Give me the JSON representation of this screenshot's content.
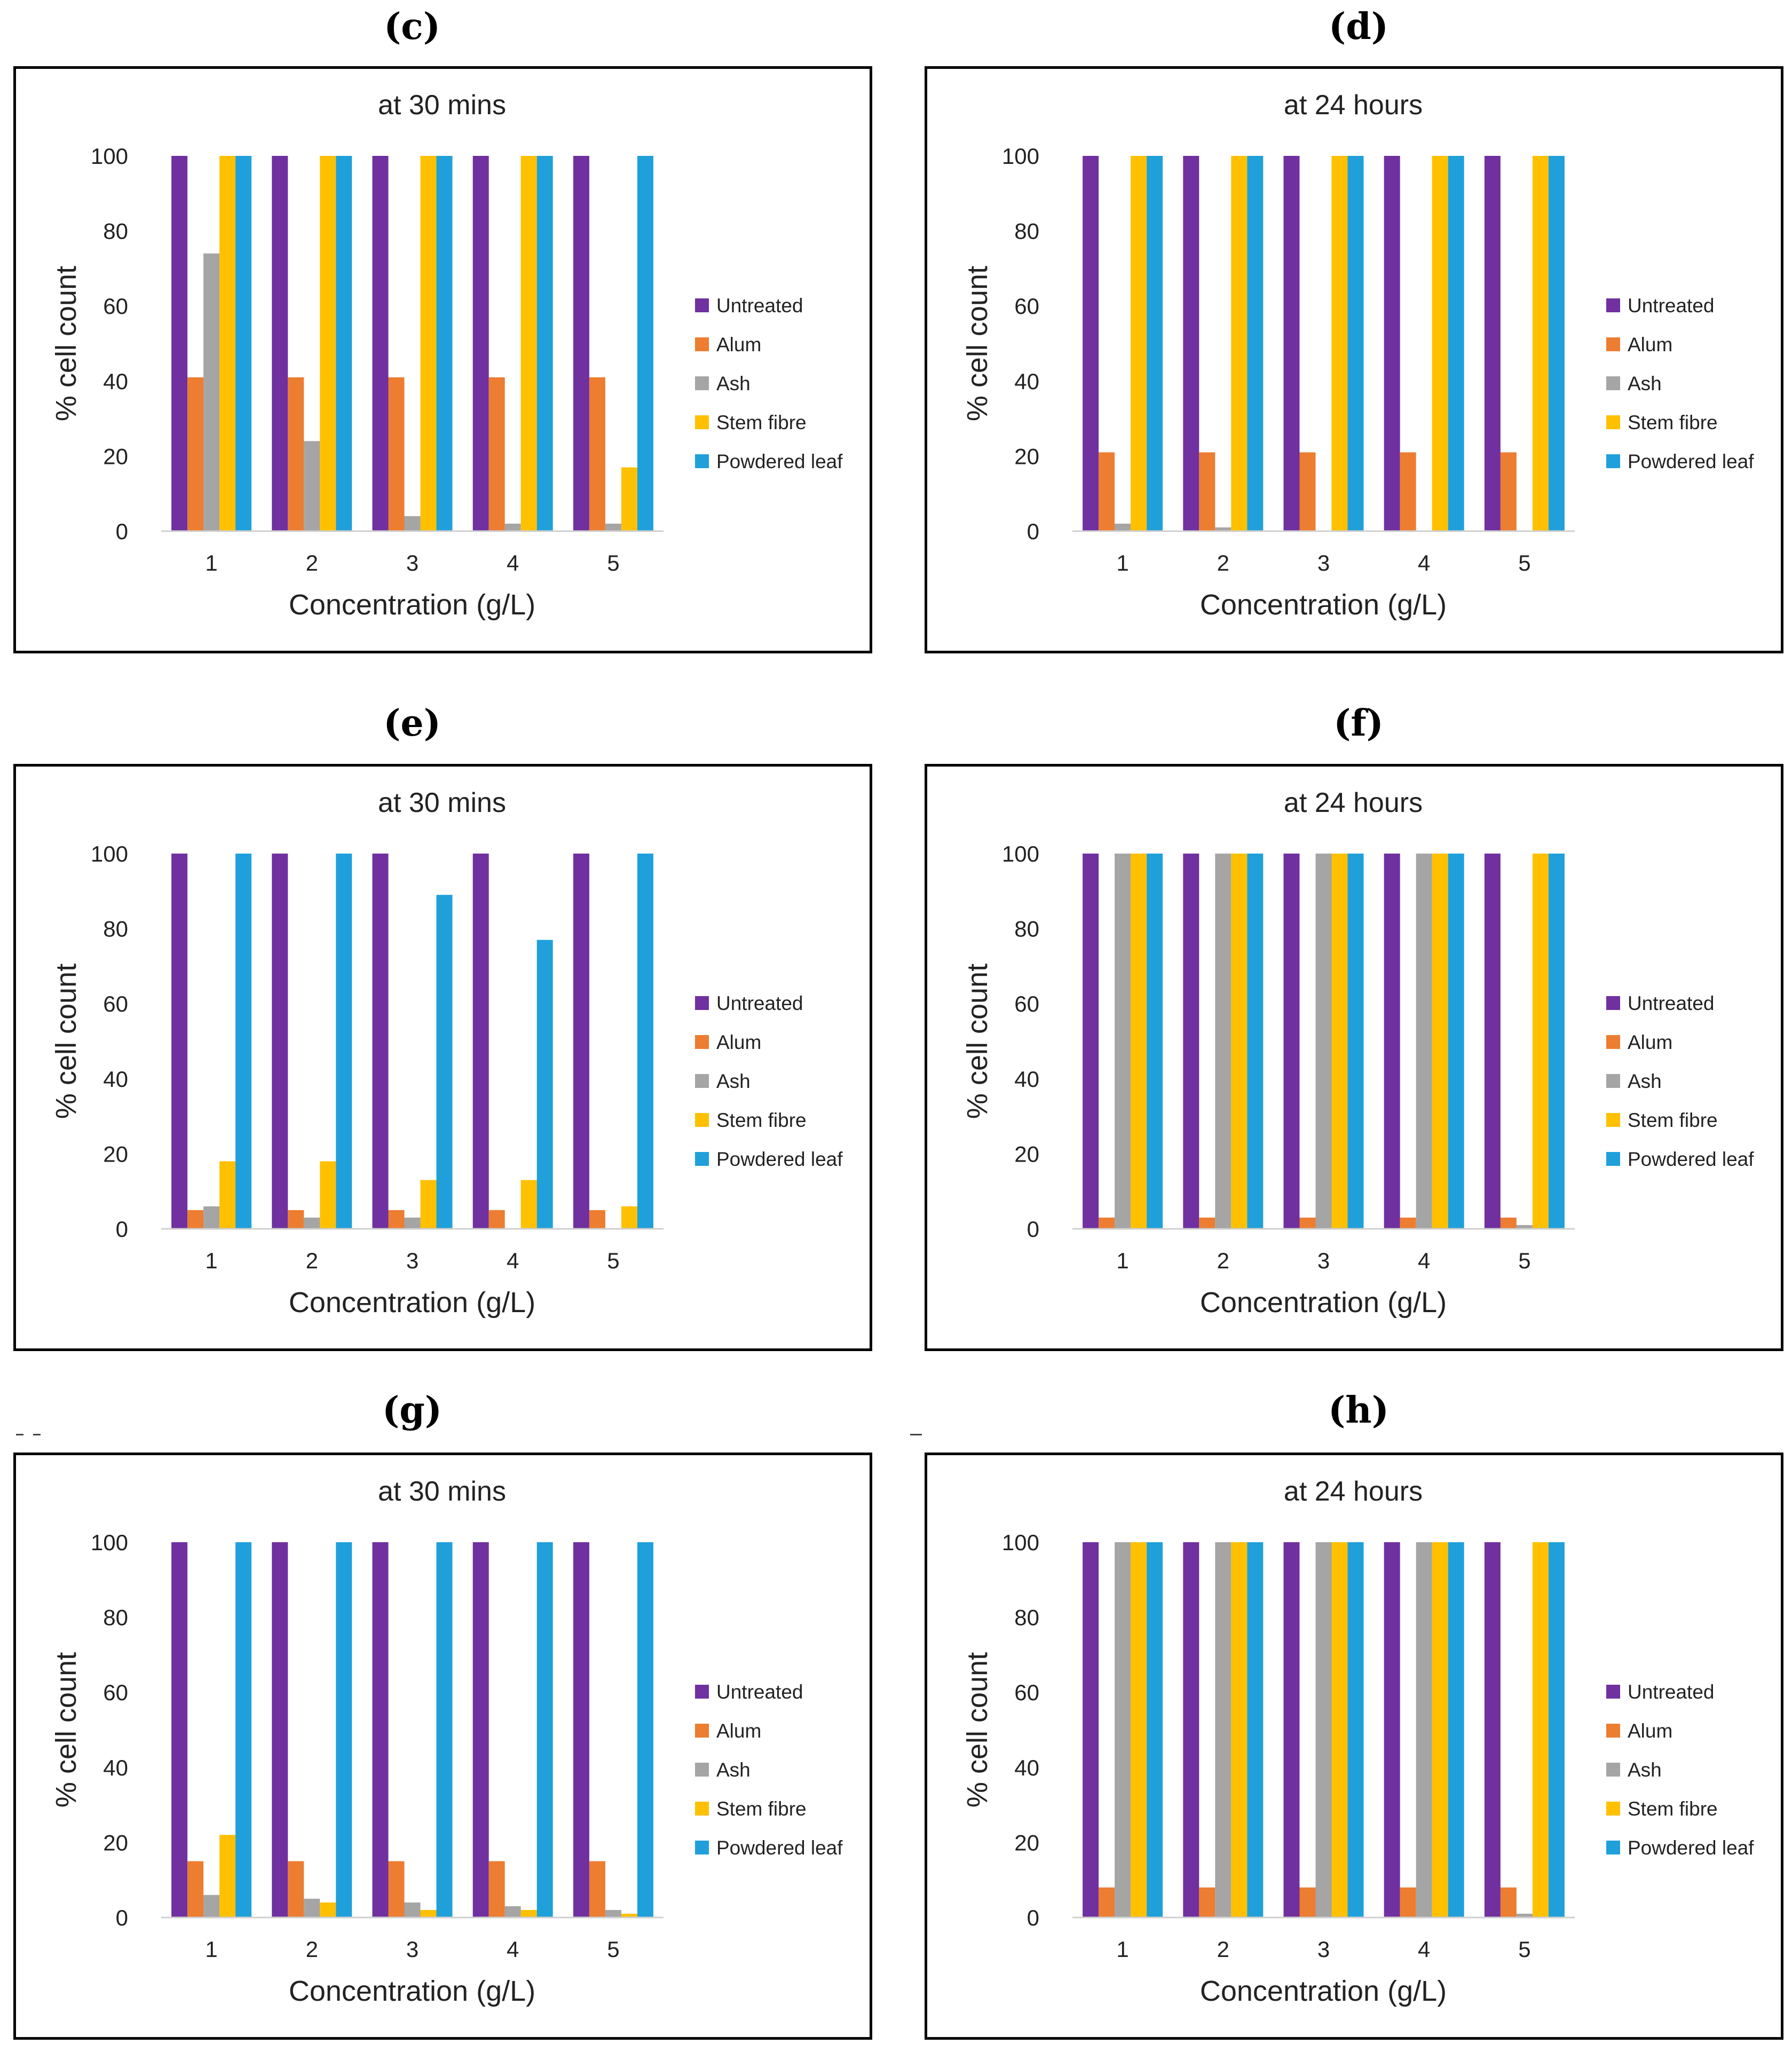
{
  "series_names": [
    "Untreated",
    "Alum",
    "Ash",
    "Stem fibre",
    "Powdered leaf"
  ],
  "series_colors": [
    "#7030A0",
    "#ED7D31",
    "#A5A5A5",
    "#FFC000",
    "#1FA0DB"
  ],
  "chart_data": [
    {
      "panel": "c",
      "type": "bar",
      "title": "at 30 mins",
      "xlabel": "Concentration (g/L)",
      "ylabel": "% cell count",
      "categories": [
        "1",
        "2",
        "3",
        "4",
        "5"
      ],
      "yticks": [
        "0",
        "20",
        "40",
        "60",
        "80",
        "100"
      ],
      "ylim": [
        0,
        100
      ],
      "legend_position": "right",
      "series": [
        {
          "name": "Untreated",
          "values": [
            100,
            100,
            100,
            100,
            100
          ]
        },
        {
          "name": "Alum",
          "values": [
            41,
            41,
            41,
            41,
            41
          ]
        },
        {
          "name": "Ash",
          "values": [
            74,
            24,
            4,
            2,
            2
          ]
        },
        {
          "name": "Stem fibre",
          "values": [
            100,
            100,
            100,
            100,
            17
          ]
        },
        {
          "name": "Powdered leaf",
          "values": [
            100,
            100,
            100,
            100,
            100
          ]
        }
      ]
    },
    {
      "panel": "d",
      "type": "bar",
      "title": "at 24 hours",
      "xlabel": "Concentration (g/L)",
      "ylabel": "% cell count",
      "categories": [
        "1",
        "2",
        "3",
        "4",
        "5"
      ],
      "yticks": [
        "0",
        "20",
        "40",
        "60",
        "80",
        "100"
      ],
      "ylim": [
        0,
        100
      ],
      "legend_position": "right",
      "series": [
        {
          "name": "Untreated",
          "values": [
            100,
            100,
            100,
            100,
            100
          ]
        },
        {
          "name": "Alum",
          "values": [
            21,
            21,
            21,
            21,
            21
          ]
        },
        {
          "name": "Ash",
          "values": [
            2,
            1,
            0,
            0,
            0
          ]
        },
        {
          "name": "Stem fibre",
          "values": [
            100,
            100,
            100,
            100,
            100
          ]
        },
        {
          "name": "Powdered leaf",
          "values": [
            100,
            100,
            100,
            100,
            100
          ]
        }
      ]
    },
    {
      "panel": "e",
      "type": "bar",
      "title": "at 30 mins",
      "xlabel": "Concentration (g/L)",
      "ylabel": "% cell count",
      "categories": [
        "1",
        "2",
        "3",
        "4",
        "5"
      ],
      "yticks": [
        "0",
        "20",
        "40",
        "60",
        "80",
        "100"
      ],
      "ylim": [
        0,
        100
      ],
      "legend_position": "right",
      "series": [
        {
          "name": "Untreated",
          "values": [
            100,
            100,
            100,
            100,
            100
          ]
        },
        {
          "name": "Alum",
          "values": [
            5,
            5,
            5,
            5,
            5
          ]
        },
        {
          "name": "Ash",
          "values": [
            6,
            3,
            3,
            0,
            0
          ]
        },
        {
          "name": "Stem fibre",
          "values": [
            18,
            18,
            13,
            13,
            6
          ]
        },
        {
          "name": "Powdered leaf",
          "values": [
            100,
            100,
            89,
            77,
            100
          ]
        }
      ]
    },
    {
      "panel": "f",
      "type": "bar",
      "title": "at 24 hours",
      "xlabel": "Concentration (g/L)",
      "ylabel": "% cell count",
      "categories": [
        "1",
        "2",
        "3",
        "4",
        "5"
      ],
      "yticks": [
        "0",
        "20",
        "40",
        "60",
        "80",
        "100"
      ],
      "ylim": [
        0,
        100
      ],
      "legend_position": "right",
      "series": [
        {
          "name": "Untreated",
          "values": [
            100,
            100,
            100,
            100,
            100
          ]
        },
        {
          "name": "Alum",
          "values": [
            3,
            3,
            3,
            3,
            3
          ]
        },
        {
          "name": "Ash",
          "values": [
            100,
            100,
            100,
            100,
            1
          ]
        },
        {
          "name": "Stem fibre",
          "values": [
            100,
            100,
            100,
            100,
            100
          ]
        },
        {
          "name": "Powdered leaf",
          "values": [
            100,
            100,
            100,
            100,
            100
          ]
        }
      ]
    },
    {
      "panel": "g",
      "type": "bar",
      "title": "at 30 mins",
      "xlabel": "Concentration (g/L)",
      "ylabel": "% cell count",
      "categories": [
        "1",
        "2",
        "3",
        "4",
        "5"
      ],
      "yticks": [
        "0",
        "20",
        "40",
        "60",
        "80",
        "100"
      ],
      "ylim": [
        0,
        100
      ],
      "legend_position": "right",
      "series": [
        {
          "name": "Untreated",
          "values": [
            100,
            100,
            100,
            100,
            100
          ]
        },
        {
          "name": "Alum",
          "values": [
            15,
            15,
            15,
            15,
            15
          ]
        },
        {
          "name": "Ash",
          "values": [
            6,
            5,
            4,
            3,
            2
          ]
        },
        {
          "name": "Stem fibre",
          "values": [
            22,
            4,
            2,
            2,
            1
          ]
        },
        {
          "name": "Powdered leaf",
          "values": [
            100,
            100,
            100,
            100,
            100
          ]
        }
      ]
    },
    {
      "panel": "h",
      "type": "bar",
      "title": "at 24 hours",
      "xlabel": "Concentration (g/L)",
      "ylabel": "% cell count",
      "categories": [
        "1",
        "2",
        "3",
        "4",
        "5"
      ],
      "yticks": [
        "0",
        "20",
        "40",
        "60",
        "80",
        "100"
      ],
      "ylim": [
        0,
        100
      ],
      "legend_position": "right",
      "series": [
        {
          "name": "Untreated",
          "values": [
            100,
            100,
            100,
            100,
            100
          ]
        },
        {
          "name": "Alum",
          "values": [
            8,
            8,
            8,
            8,
            8
          ]
        },
        {
          "name": "Ash",
          "values": [
            100,
            100,
            100,
            100,
            1
          ]
        },
        {
          "name": "Stem fibre",
          "values": [
            100,
            100,
            100,
            100,
            100
          ]
        },
        {
          "name": "Powdered leaf",
          "values": [
            100,
            100,
            100,
            100,
            100
          ]
        }
      ]
    }
  ],
  "panel_labels": {
    "c": "(c)",
    "d": "(d)",
    "e": "(e)",
    "f": "(f)",
    "g": "(g)",
    "h": "(h)"
  }
}
